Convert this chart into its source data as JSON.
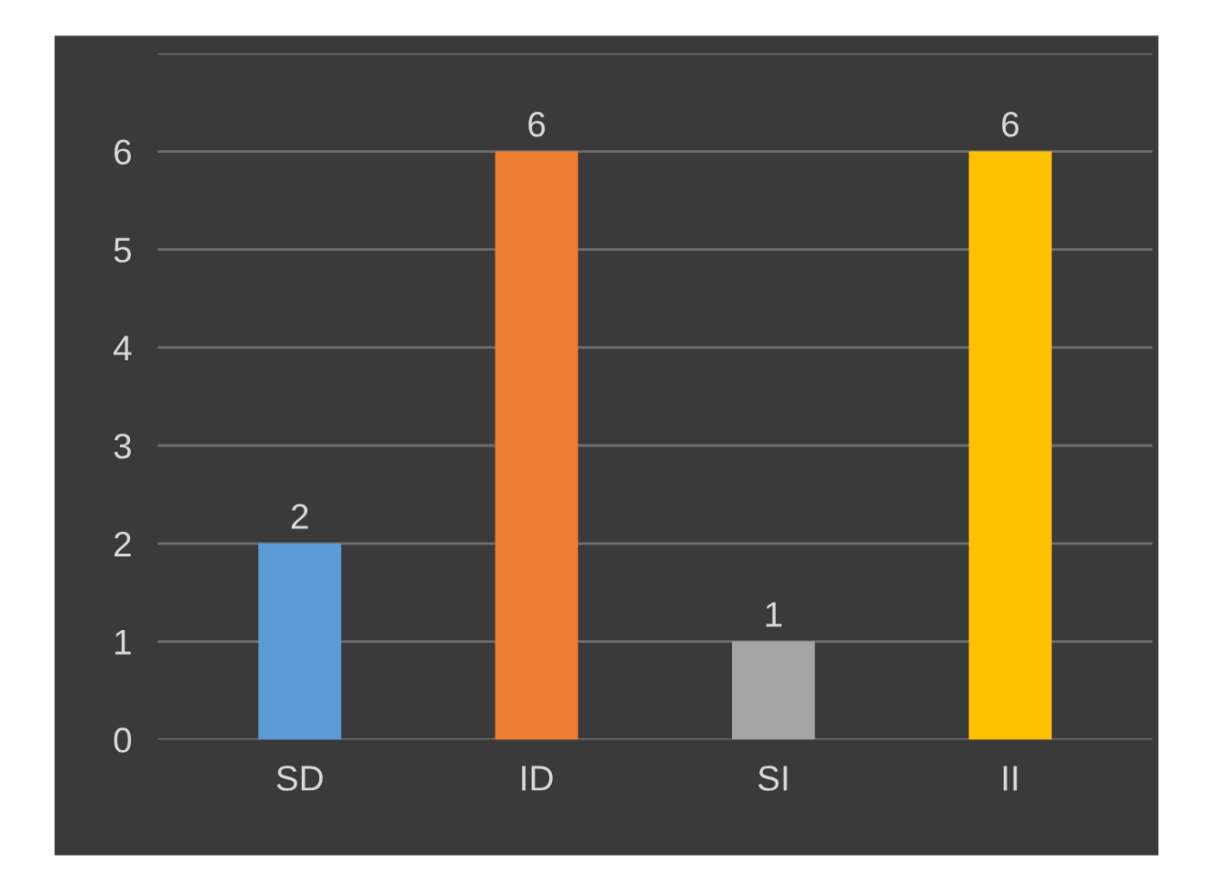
{
  "chart_data": {
    "type": "bar",
    "categories": [
      "SD",
      "ID",
      "SI",
      "II"
    ],
    "values": [
      2,
      6,
      1,
      6
    ],
    "colors": [
      "#5b9bd5",
      "#ed7d31",
      "#a5a5a5",
      "#ffc000"
    ],
    "ylim": [
      0,
      7
    ],
    "yticks": [
      0,
      1,
      2,
      3,
      4,
      5,
      6,
      {
        "value": 7,
        "label": null
      }
    ],
    "grid": "y",
    "data_labels": true
  }
}
